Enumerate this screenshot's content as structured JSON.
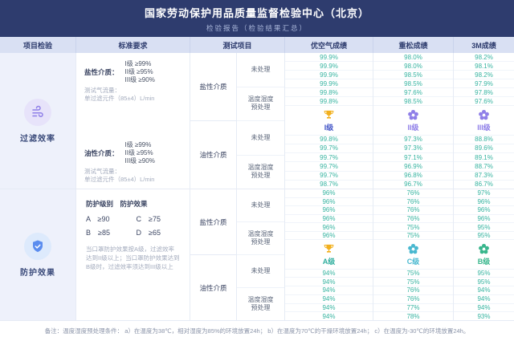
{
  "header": {
    "title": "国家劳动保护用品质量监督检验中心（北京）",
    "subtitle": "检验报告（检验结果汇总）"
  },
  "columns": {
    "item": "项目检验",
    "standard": "标准要求",
    "test": "测试项目",
    "youkongqi": "优空气成绩",
    "chongsong": "重松成绩",
    "m3": "3M成绩"
  },
  "filter": {
    "name": "过滤效率",
    "standard": {
      "salt_title": "盐性介质：",
      "salt_level1": "I级 ≥99%",
      "salt_level2": "II级 ≥95%",
      "salt_level3": "III级 ≥90%",
      "salt_flow_label": "测试气流量：",
      "salt_flow_value": "单过滤元件（85±4）L/min",
      "oil_title": "油性介质：",
      "oil_level1": "I级 ≥99%",
      "oil_level2": "II级 ≥95%",
      "oil_level3": "III级 ≥90%",
      "oil_flow_label": "测试气流量：",
      "oil_flow_value": "单过滤元件（85±4）L/min"
    },
    "tests": {
      "salt": "盐性介质",
      "oil": "油性介质",
      "untreated": "未处理",
      "conditioned_line1": "温度湿度",
      "conditioned_line2": "预处理"
    },
    "scores": {
      "youkongqi": {
        "grade": "I级",
        "salt_values": [
          "99.9%",
          "99.9%",
          "99.9%",
          "99.9%",
          "99.8%",
          "99.8%"
        ],
        "oil_values": [
          "99.8%",
          "99.7%",
          "99.7%",
          "99.7%",
          "99.7%",
          "98.7%"
        ]
      },
      "chongsong": {
        "grade": "II级",
        "salt_values": [
          "98.0%",
          "98.0%",
          "98.5%",
          "98.5%",
          "97.6%",
          "98.5%"
        ],
        "oil_values": [
          "97.3%",
          "97.3%",
          "97.1%",
          "96.9%",
          "96.8%",
          "96.7%"
        ]
      },
      "m3": {
        "grade": "III级",
        "salt_values": [
          "98.2%",
          "98.1%",
          "98.2%",
          "97.9%",
          "97.8%",
          "97.6%"
        ],
        "oil_values": [
          "88.8%",
          "89.6%",
          "89.1%",
          "88.7%",
          "87.3%",
          "86.7%"
        ]
      }
    }
  },
  "protection": {
    "name": "防护效果",
    "standard": {
      "header": "防护级别　防护效果",
      "grade_a": "A　≥90",
      "grade_c": "C　≥75",
      "grade_b": "B　≥85",
      "grade_d": "D　≥65",
      "note": "当口罩防护效果按A级，过滤效率达到II级以上；当口罩防护效果达到B级时，过滤效率须达到III级以上"
    },
    "tests": {
      "salt": "盐性介质",
      "oil": "油性介质",
      "untreated": "未处理",
      "conditioned_line1": "温度湿度",
      "conditioned_line2": "预处理"
    },
    "scores": {
      "youkongqi": {
        "grade": "A级",
        "salt_values": [
          "96%",
          "96%",
          "96%",
          "96%",
          "96%",
          "96%"
        ],
        "oil_values": [
          "94%",
          "94%",
          "94%",
          "94%",
          "94%",
          "94%"
        ]
      },
      "chongsong": {
        "grade": "C级",
        "salt_values": [
          "76%",
          "76%",
          "76%",
          "76%",
          "75%",
          "75%"
        ],
        "oil_values": [
          "75%",
          "75%",
          "76%",
          "76%",
          "77%",
          "78%"
        ]
      },
      "m3": {
        "grade": "B级",
        "salt_values": [
          "97%",
          "96%",
          "96%",
          "96%",
          "95%",
          "95%"
        ],
        "oil_values": [
          "95%",
          "95%",
          "94%",
          "94%",
          "94%",
          "93%"
        ]
      }
    }
  },
  "footer": {
    "note": "备注：温度湿度预处理条件：  a）在温度为38℃，相对湿度为85%的环境放置24h；  b）在温度为70℃的干燥环境放置24h；  c）在温度为-30℃的环境放置24h。"
  },
  "colors": {
    "header_bg": "#2e3c6e",
    "column_header_bg": "#d9e0f3",
    "value_green": "#35b3a0",
    "purple_accent": "#8f7fe8",
    "blue_accent": "#5b8def",
    "teal_accent": "#2fae9e",
    "gold_accent": "#f2b01e"
  }
}
